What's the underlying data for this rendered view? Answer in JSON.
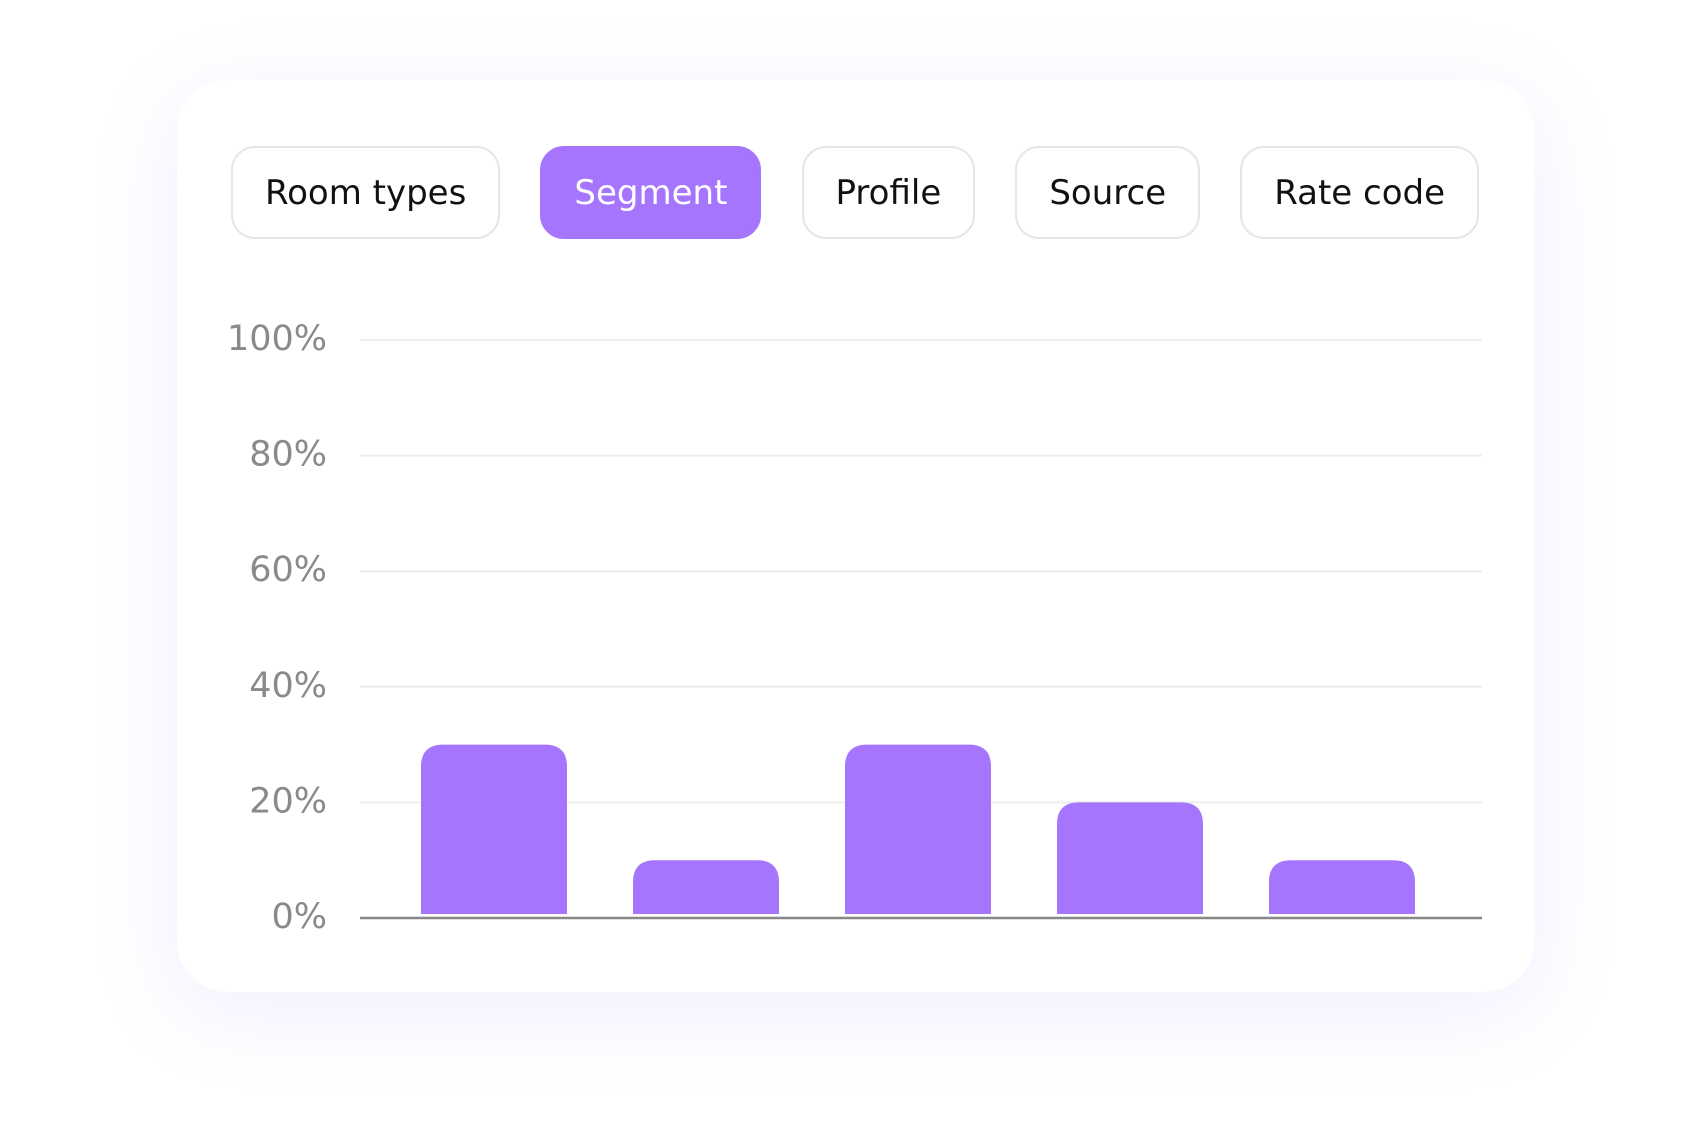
{
  "tabs": [
    "Room types",
    "Segment",
    "Profile",
    "Source",
    "Rate code"
  ],
  "active_tab": 1,
  "chart_data": {
    "type": "bar",
    "categories": [
      null,
      null,
      null,
      null,
      null
    ],
    "values": [
      30,
      10,
      30,
      20,
      10
    ],
    "color": "#a575fd",
    "ylim": [
      0,
      100
    ],
    "yticks": [
      {
        "value": 0,
        "label": "0%"
      },
      {
        "value": 20,
        "label": "20%"
      },
      {
        "value": 40,
        "label": "40%"
      },
      {
        "value": 60,
        "label": "60%"
      },
      {
        "value": 80,
        "label": "80%"
      },
      {
        "value": 100,
        "label": "100%"
      }
    ],
    "grid": true
  }
}
